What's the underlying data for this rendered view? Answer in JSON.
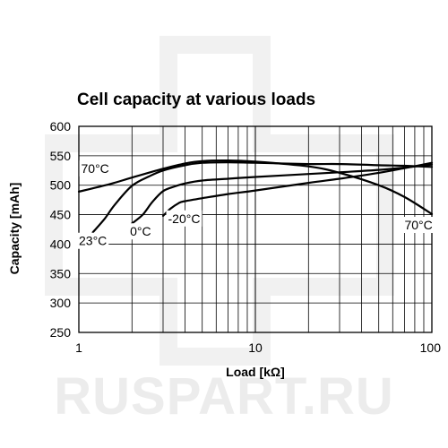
{
  "watermark": "RUSPART.RU",
  "chart_data": {
    "type": "line",
    "title": "Cell capacity at various loads",
    "xlabel": "Load [kΩ]",
    "ylabel": "Capacity [mAh]",
    "xscale": "log",
    "xlim": [
      1,
      100
    ],
    "ylim": [
      250,
      600
    ],
    "x_ticks": [
      1,
      10,
      100
    ],
    "x_tick_labels": [
      "1",
      "10",
      "100"
    ],
    "y_ticks": [
      250,
      300,
      350,
      400,
      450,
      500,
      550,
      600
    ],
    "y_tick_labels": [
      "250",
      "300",
      "350",
      "400",
      "450",
      "500",
      "550",
      "600"
    ],
    "grid": true,
    "series": [
      {
        "name": "70°C",
        "x": [
          1,
          1.5,
          2,
          3,
          4,
          5,
          7,
          10,
          20,
          30,
          50,
          70,
          100
        ],
        "y": [
          489,
          502,
          513,
          528,
          537,
          541,
          542,
          540,
          532,
          521,
          500,
          480,
          451
        ]
      },
      {
        "name": "23°C",
        "x": [
          1.2,
          1.4,
          1.6,
          2,
          2.5,
          3,
          4,
          5,
          7,
          10,
          20,
          30,
          50,
          70,
          100
        ],
        "y": [
          420,
          443,
          467,
          499,
          515,
          525,
          534,
          538,
          539,
          538,
          536,
          536,
          534,
          533,
          531
        ]
      },
      {
        "name": "0°C",
        "x": [
          2,
          2.3,
          2.6,
          3,
          3.5,
          4,
          5,
          7,
          10,
          20,
          30,
          50,
          70,
          100
        ],
        "y": [
          435,
          450,
          471,
          490,
          498,
          503,
          508,
          511,
          514,
          519,
          522,
          526,
          530,
          535
        ]
      },
      {
        "name": "-20°C",
        "x": [
          3,
          3.3,
          3.7,
          4,
          5,
          7,
          10,
          20,
          30,
          50,
          70,
          100
        ],
        "y": [
          448,
          460,
          470,
          473,
          478,
          485,
          491,
          504,
          511,
          521,
          529,
          538
        ]
      }
    ],
    "annotations": [
      {
        "text": "70°C",
        "series": "70°C",
        "x": 1.03,
        "y": 521
      },
      {
        "text": "23°C",
        "series": "23°C",
        "x": 1.0,
        "y": 398
      },
      {
        "text": "0°C",
        "series": "0°C",
        "x": 1.95,
        "y": 414
      },
      {
        "text": "-20°C",
        "series": "-20°C",
        "x": 3.2,
        "y": 436
      },
      {
        "text": "70°C",
        "series": "70°C",
        "x": 70,
        "y": 425
      }
    ]
  }
}
